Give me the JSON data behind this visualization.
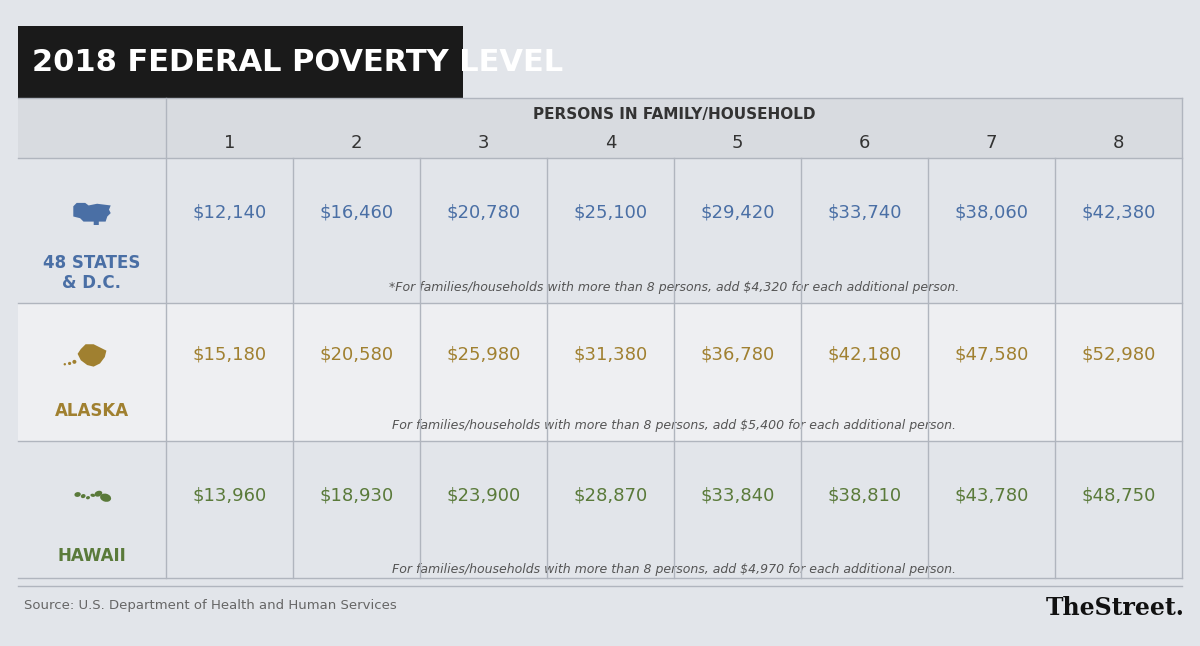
{
  "title": "2018 FEDERAL POVERTY LEVEL",
  "title_bg": "#1a1a1a",
  "title_color": "#ffffff",
  "bg_color": "#e2e5ea",
  "header_label": "PERSONS IN FAMILY/HOUSEHOLD",
  "columns": [
    "1",
    "2",
    "3",
    "4",
    "5",
    "6",
    "7",
    "8"
  ],
  "rows": [
    {
      "region": "48 STATES\n& D.C.",
      "region_color": "#4a6fa5",
      "values": [
        "$12,140",
        "$16,460",
        "$20,780",
        "$25,100",
        "$29,420",
        "$33,740",
        "$38,060",
        "$42,380"
      ],
      "note": "*For families/households with more than 8 persons, add $4,320 for each additional person.",
      "row_bg": "#e2e5ea"
    },
    {
      "region": "ALASKA",
      "region_color": "#a08030",
      "values": [
        "$15,180",
        "$20,580",
        "$25,980",
        "$31,380",
        "$36,780",
        "$42,180",
        "$47,580",
        "$52,980"
      ],
      "note": "For families/households with more than 8 persons, add $5,400 for each additional person.",
      "row_bg": "#eeeff2"
    },
    {
      "region": "HAWAII",
      "region_color": "#5a7a3a",
      "values": [
        "$13,960",
        "$18,930",
        "$23,900",
        "$28,870",
        "$33,840",
        "$38,810",
        "$43,780",
        "$48,750"
      ],
      "note": "For families/households with more than 8 persons, add $4,970 for each additional person.",
      "row_bg": "#e2e5ea"
    }
  ],
  "source_text": "Source: U.S. Department of Health and Human Services",
  "brand_text": "TheStreet.",
  "divider_color": "#b0b5be",
  "val_colors": [
    "#4a6fa5",
    "#a08030",
    "#5a7a3a"
  ],
  "note_color": "#555555",
  "header_bg": "#d8dbe0",
  "col_num_color": "#333333",
  "title_fontsize": 22,
  "col_num_fontsize": 13,
  "val_fontsize": 13,
  "note_fontsize": 9,
  "region_fontsize": 12,
  "header_fontsize": 11
}
